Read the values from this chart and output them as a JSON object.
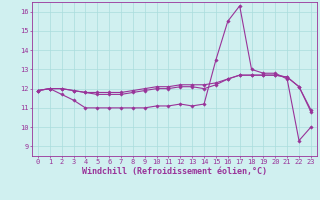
{
  "xlabel": "Windchill (Refroidissement éolien,°C)",
  "x": [
    0,
    1,
    2,
    3,
    4,
    5,
    6,
    7,
    8,
    9,
    10,
    11,
    12,
    13,
    14,
    15,
    16,
    17,
    18,
    19,
    20,
    21,
    22,
    23
  ],
  "line1": [
    11.9,
    12.0,
    11.7,
    11.4,
    11.0,
    11.0,
    11.0,
    11.0,
    11.0,
    11.0,
    11.1,
    11.1,
    11.2,
    11.1,
    11.2,
    13.5,
    15.5,
    16.3,
    13.0,
    12.8,
    12.8,
    12.5,
    9.3,
    10.0
  ],
  "line2": [
    11.9,
    12.0,
    12.0,
    11.9,
    11.8,
    11.7,
    11.7,
    11.7,
    11.8,
    11.9,
    12.0,
    12.0,
    12.1,
    12.1,
    12.0,
    12.2,
    12.5,
    12.7,
    12.7,
    12.7,
    12.7,
    12.6,
    12.1,
    10.8
  ],
  "line3": [
    11.9,
    12.0,
    12.0,
    11.9,
    11.8,
    11.8,
    11.8,
    11.8,
    11.9,
    12.0,
    12.1,
    12.1,
    12.2,
    12.2,
    12.2,
    12.3,
    12.5,
    12.7,
    12.7,
    12.7,
    12.7,
    12.6,
    12.1,
    10.9
  ],
  "line_color": "#993399",
  "bg_color": "#d0f0f0",
  "grid_color": "#aadddd",
  "ylim": [
    8.5,
    16.5
  ],
  "yticks": [
    9,
    10,
    11,
    12,
    13,
    14,
    15,
    16
  ],
  "marker": "D",
  "markersize": 1.8,
  "linewidth": 0.8,
  "tick_fontsize": 5.0,
  "xlabel_fontsize": 6.0
}
